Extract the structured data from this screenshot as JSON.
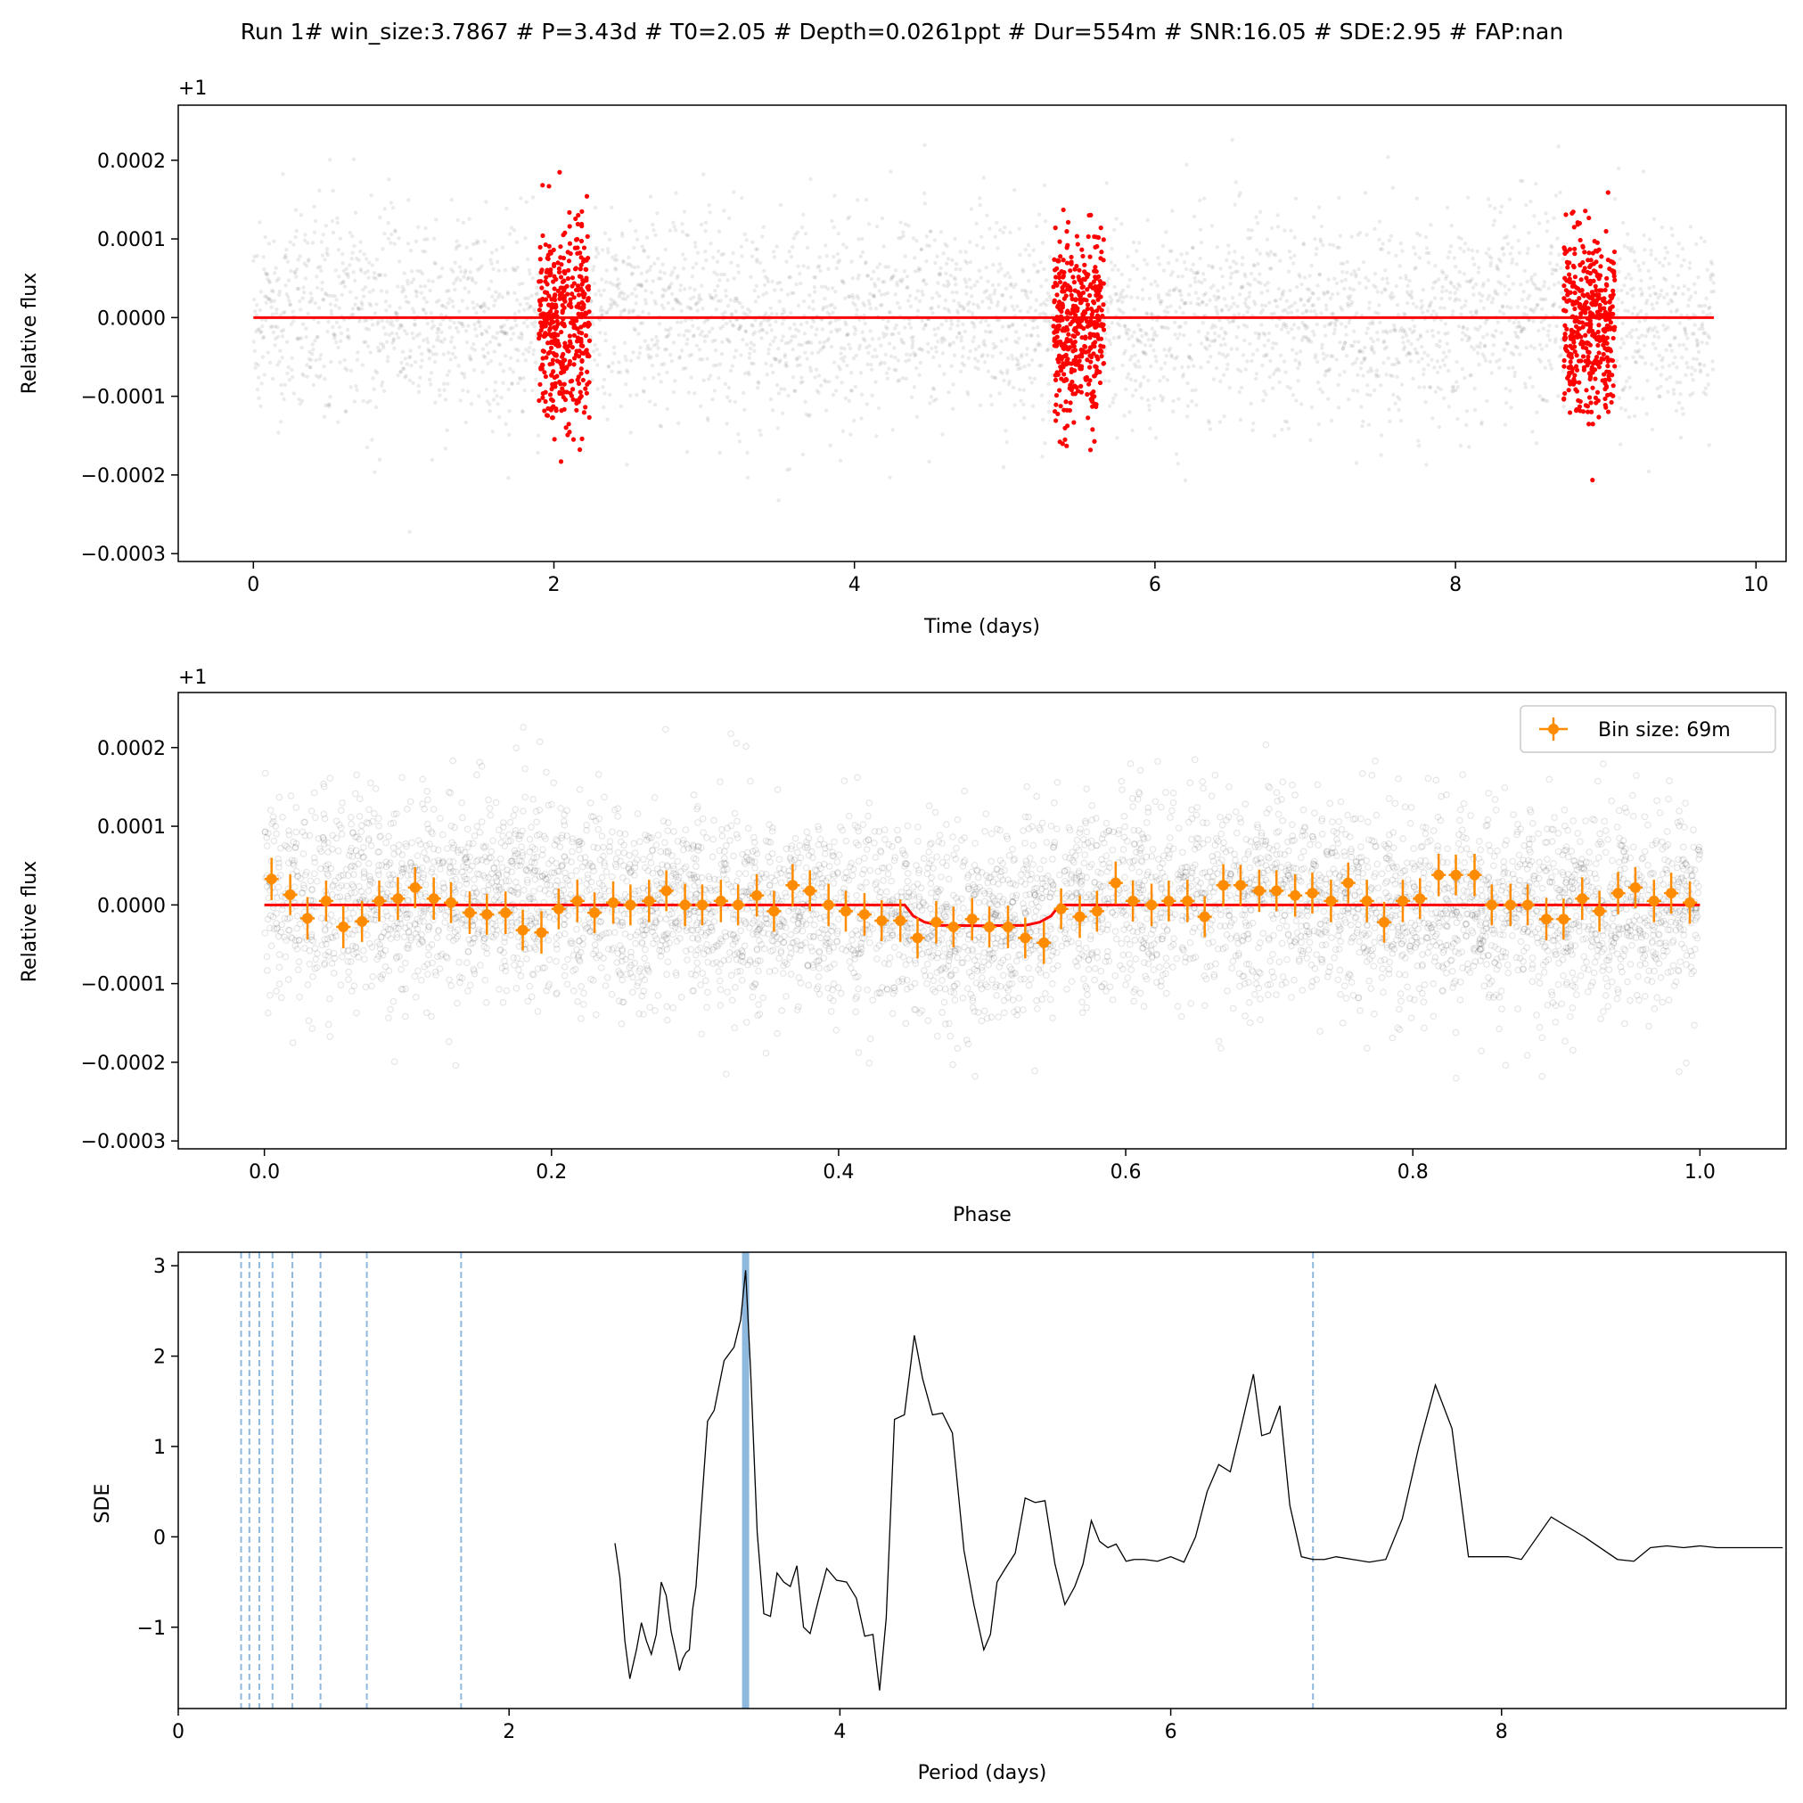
{
  "figure_title": "Run 1# win_size:3.7867 # P=3.43d # T0=2.05 # Depth=0.0261ppt # Dur=554m # SNR:16.05 # SDE:2.95 # FAP:nan",
  "colors": {
    "raw_points": "#000000",
    "in_transit": "#ff0000",
    "model": "#ff0000",
    "binned": "#ff8c00",
    "harmonics": "#8fb8de",
    "periodogram": "#000000"
  },
  "chart_data": [
    {
      "type": "scatter",
      "xlabel": "Time (days)",
      "ylabel": "Relative flux",
      "offset_label": "+1",
      "xlim": [
        -0.5,
        10.2
      ],
      "ylim": [
        -0.00031,
        0.00027
      ],
      "xticks": [
        0,
        2,
        4,
        6,
        8,
        10
      ],
      "xtick_labels": [
        "0",
        "2",
        "4",
        "6",
        "8",
        "10"
      ],
      "yticks": [
        -0.0003,
        -0.0002,
        -0.0001,
        0.0,
        0.0001,
        0.0002
      ],
      "ytick_labels": [
        "−0.0003",
        "−0.0002",
        "−0.0001",
        "0.0000",
        "0.0001",
        "0.0002"
      ],
      "grid": false,
      "time_range": [
        0.0,
        9.72
      ],
      "noise_std": 6.5e-05,
      "in_transit_windows": [
        [
          1.9,
          2.24
        ],
        [
          5.32,
          5.66
        ],
        [
          8.72,
          9.06
        ]
      ],
      "model_line": {
        "x": [
          0.0,
          9.72
        ],
        "y": [
          0.0,
          0.0
        ]
      },
      "series": [
        {
          "name": "",
          "kind": "out-of-transit points"
        },
        {
          "name": "",
          "kind": "in-transit points"
        },
        {
          "name": "",
          "kind": "transit model"
        }
      ]
    },
    {
      "type": "scatter",
      "xlabel": "Phase",
      "ylabel": "Relative flux",
      "offset_label": "+1",
      "xlim": [
        -0.06,
        1.06
      ],
      "ylim": [
        -0.00031,
        0.00027
      ],
      "xticks": [
        0.0,
        0.2,
        0.4,
        0.6,
        0.8,
        1.0
      ],
      "xtick_labels": [
        "0.0",
        "0.2",
        "0.4",
        "0.6",
        "0.8",
        "1.0"
      ],
      "yticks": [
        -0.0003,
        -0.0002,
        -0.0001,
        0.0,
        0.0001,
        0.0002
      ],
      "ytick_labels": [
        "−0.0003",
        "−0.0002",
        "−0.0001",
        "0.0000",
        "0.0001",
        "0.0002"
      ],
      "grid": false,
      "legend": {
        "label": "Bin size: 69m",
        "location": "upper right"
      },
      "model_line": {
        "x": [
          0.0,
          0.446,
          0.452,
          0.46,
          0.47,
          0.5,
          0.53,
          0.54,
          0.548,
          0.554,
          1.0
        ],
        "y": [
          0.0,
          0.0,
          -1.4e-05,
          -2.2e-05,
          -2.6e-05,
          -2.65e-05,
          -2.6e-05,
          -2.2e-05,
          -1.4e-05,
          0.0,
          0.0
        ]
      },
      "binned": {
        "phase": [
          0.005,
          0.018,
          0.03,
          0.043,
          0.055,
          0.068,
          0.08,
          0.093,
          0.105,
          0.118,
          0.13,
          0.143,
          0.155,
          0.168,
          0.18,
          0.193,
          0.205,
          0.218,
          0.23,
          0.243,
          0.255,
          0.268,
          0.28,
          0.293,
          0.305,
          0.318,
          0.33,
          0.343,
          0.355,
          0.368,
          0.38,
          0.393,
          0.405,
          0.418,
          0.43,
          0.443,
          0.455,
          0.468,
          0.48,
          0.493,
          0.505,
          0.518,
          0.53,
          0.543,
          0.555,
          0.568,
          0.58,
          0.593,
          0.605,
          0.618,
          0.63,
          0.643,
          0.655,
          0.668,
          0.68,
          0.693,
          0.705,
          0.718,
          0.73,
          0.743,
          0.755,
          0.768,
          0.78,
          0.793,
          0.805,
          0.818,
          0.83,
          0.843,
          0.855,
          0.868,
          0.88,
          0.893,
          0.905,
          0.918,
          0.93,
          0.943,
          0.955,
          0.968,
          0.98,
          0.993
        ],
        "flux": [
          3.3e-05,
          1.3e-05,
          -1.7e-05,
          5e-06,
          -2.8e-05,
          -2.1e-05,
          5e-06,
          8e-06,
          2.2e-05,
          8e-06,
          3e-06,
          -1e-05,
          -1.2e-05,
          -1e-05,
          -3.2e-05,
          -3.5e-05,
          -5e-06,
          5e-06,
          -1e-05,
          3e-06,
          0.0,
          5e-06,
          1.8e-05,
          0.0,
          0.0,
          5e-06,
          0.0,
          1.2e-05,
          -8e-06,
          2.5e-05,
          1.8e-05,
          0.0,
          -8e-06,
          -1.2e-05,
          -2e-05,
          -2e-05,
          -4.2e-05,
          -2.2e-05,
          -2.8e-05,
          -1.8e-05,
          -2.8e-05,
          -2.8e-05,
          -4.2e-05,
          -4.8e-05,
          -5e-06,
          -1.5e-05,
          -8e-06,
          2.8e-05,
          5e-06,
          0.0,
          5e-06,
          5e-06,
          -1.5e-05,
          2.5e-05,
          2.5e-05,
          1.8e-05,
          1.8e-05,
          1.2e-05,
          1.5e-05,
          5e-06,
          2.8e-05,
          5e-06,
          -2.2e-05,
          5e-06,
          8e-06,
          3.8e-05,
          3.8e-05,
          3.8e-05,
          0.0,
          0.0,
          0.0,
          -1.8e-05,
          -1.8e-05,
          8e-06,
          -8e-06,
          1.5e-05,
          2.2e-05,
          5e-06,
          1.5e-05,
          3e-06
        ],
        "error": [
          2.7e-05,
          2.6e-05,
          2.7e-05,
          2.6e-05,
          2.7e-05,
          2.6e-05,
          2.6e-05,
          2.7e-05,
          2.6e-05,
          2.7e-05,
          2.6e-05,
          2.7e-05,
          2.6e-05,
          2.7e-05,
          2.6e-05,
          2.7e-05,
          2.6e-05,
          2.7e-05,
          2.6e-05,
          2.7e-05,
          2.6e-05,
          2.7e-05,
          2.6e-05,
          2.7e-05,
          2.6e-05,
          2.7e-05,
          2.6e-05,
          2.7e-05,
          2.6e-05,
          2.7e-05,
          2.6e-05,
          2.7e-05,
          2.6e-05,
          2.7e-05,
          2.6e-05,
          2.7e-05,
          2.6e-05,
          2.7e-05,
          2.6e-05,
          2.7e-05,
          2.6e-05,
          2.7e-05,
          2.6e-05,
          2.7e-05,
          2.6e-05,
          2.7e-05,
          2.6e-05,
          2.7e-05,
          2.6e-05,
          2.7e-05,
          2.6e-05,
          2.7e-05,
          2.6e-05,
          2.7e-05,
          2.6e-05,
          2.7e-05,
          2.6e-05,
          2.7e-05,
          2.6e-05,
          2.7e-05,
          2.6e-05,
          2.7e-05,
          2.6e-05,
          2.7e-05,
          2.6e-05,
          2.7e-05,
          2.6e-05,
          2.7e-05,
          2.6e-05,
          2.7e-05,
          2.6e-05,
          2.7e-05,
          2.6e-05,
          2.7e-05,
          2.6e-05,
          2.7e-05,
          2.6e-05,
          2.7e-05,
          2.6e-05,
          2.7e-05
        ],
        "bin_halfwidth": 0.005
      },
      "series": [
        {
          "name": "",
          "kind": "folded points"
        },
        {
          "name": "",
          "kind": "transit model"
        },
        {
          "name": "Bin size: 69m",
          "kind": "binned"
        }
      ]
    },
    {
      "type": "line",
      "xlabel": "Period (days)",
      "ylabel": "SDE",
      "xlim": [
        0,
        9.72
      ],
      "ylim": [
        -1.9,
        3.15
      ],
      "xticks": [
        0,
        2,
        4,
        6,
        8
      ],
      "xtick_labels": [
        "0",
        "2",
        "4",
        "6",
        "8"
      ],
      "yticks": [
        -1,
        0,
        1,
        2,
        3
      ],
      "ytick_labels": [
        "−1",
        "0",
        "1",
        "2",
        "3"
      ],
      "grid": false,
      "best_period": 3.43,
      "harmonics": [
        0.38,
        0.43,
        0.49,
        0.57,
        0.69,
        0.86,
        1.14,
        1.71,
        6.86
      ],
      "x": [
        2.64,
        2.67,
        2.7,
        2.73,
        2.77,
        2.8,
        2.83,
        2.86,
        2.89,
        2.92,
        2.95,
        2.98,
        3.01,
        3.03,
        3.05,
        3.07,
        3.09,
        3.11,
        3.13,
        3.16,
        3.2,
        3.24,
        3.3,
        3.36,
        3.4,
        3.43,
        3.46,
        3.5,
        3.54,
        3.58,
        3.62,
        3.66,
        3.7,
        3.74,
        3.78,
        3.82,
        3.87,
        3.92,
        3.98,
        4.04,
        4.1,
        4.15,
        4.2,
        4.24,
        4.28,
        4.33,
        4.39,
        4.45,
        4.5,
        4.56,
        4.62,
        4.68,
        4.75,
        4.81,
        4.87,
        4.91,
        4.95,
        5.0,
        5.06,
        5.12,
        5.18,
        5.24,
        5.3,
        5.36,
        5.42,
        5.47,
        5.52,
        5.57,
        5.62,
        5.67,
        5.73,
        5.78,
        5.84,
        5.92,
        6.0,
        6.08,
        6.15,
        6.22,
        6.29,
        6.36,
        6.43,
        6.5,
        6.55,
        6.6,
        6.66,
        6.72,
        6.79,
        6.86,
        6.93,
        7.0,
        7.1,
        7.2,
        7.3,
        7.4,
        7.5,
        7.6,
        7.7,
        7.8,
        7.88,
        7.96,
        8.04,
        8.12,
        8.3,
        8.5,
        8.7,
        8.8,
        8.9,
        9.0,
        9.1,
        9.2,
        9.3,
        9.5,
        9.7
      ],
      "y": [
        -0.07,
        -0.45,
        -1.15,
        -1.57,
        -1.25,
        -0.95,
        -1.15,
        -1.3,
        -1.08,
        -0.5,
        -0.65,
        -1.05,
        -1.3,
        -1.48,
        -1.35,
        -1.28,
        -1.25,
        -0.8,
        -0.55,
        0.25,
        1.28,
        1.4,
        1.95,
        2.1,
        2.4,
        2.95,
        1.85,
        0.05,
        -0.85,
        -0.88,
        -0.4,
        -0.5,
        -0.55,
        -0.32,
        -1.0,
        -1.07,
        -0.7,
        -0.35,
        -0.48,
        -0.5,
        -0.68,
        -1.1,
        -1.08,
        -1.7,
        -0.9,
        1.3,
        1.35,
        2.23,
        1.75,
        1.35,
        1.37,
        1.15,
        -0.15,
        -0.75,
        -1.25,
        -1.08,
        -0.5,
        -0.35,
        -0.18,
        0.43,
        0.38,
        0.4,
        -0.3,
        -0.75,
        -0.55,
        -0.3,
        0.18,
        -0.05,
        -0.12,
        -0.08,
        -0.27,
        -0.25,
        -0.25,
        -0.27,
        -0.22,
        -0.28,
        0.0,
        0.5,
        0.8,
        0.72,
        1.25,
        1.8,
        1.12,
        1.15,
        1.45,
        0.35,
        -0.22,
        -0.25,
        -0.25,
        -0.22,
        -0.25,
        -0.28,
        -0.25,
        0.2,
        1.0,
        1.68,
        1.2,
        -0.22,
        -0.22,
        -0.22,
        -0.22,
        -0.25,
        0.22,
        0.0,
        -0.25,
        -0.27,
        -0.12,
        -0.1,
        -0.12,
        -0.1,
        -0.12,
        -0.12,
        -0.12
      ],
      "series": [
        {
          "name": "",
          "kind": "periodogram"
        }
      ]
    }
  ]
}
